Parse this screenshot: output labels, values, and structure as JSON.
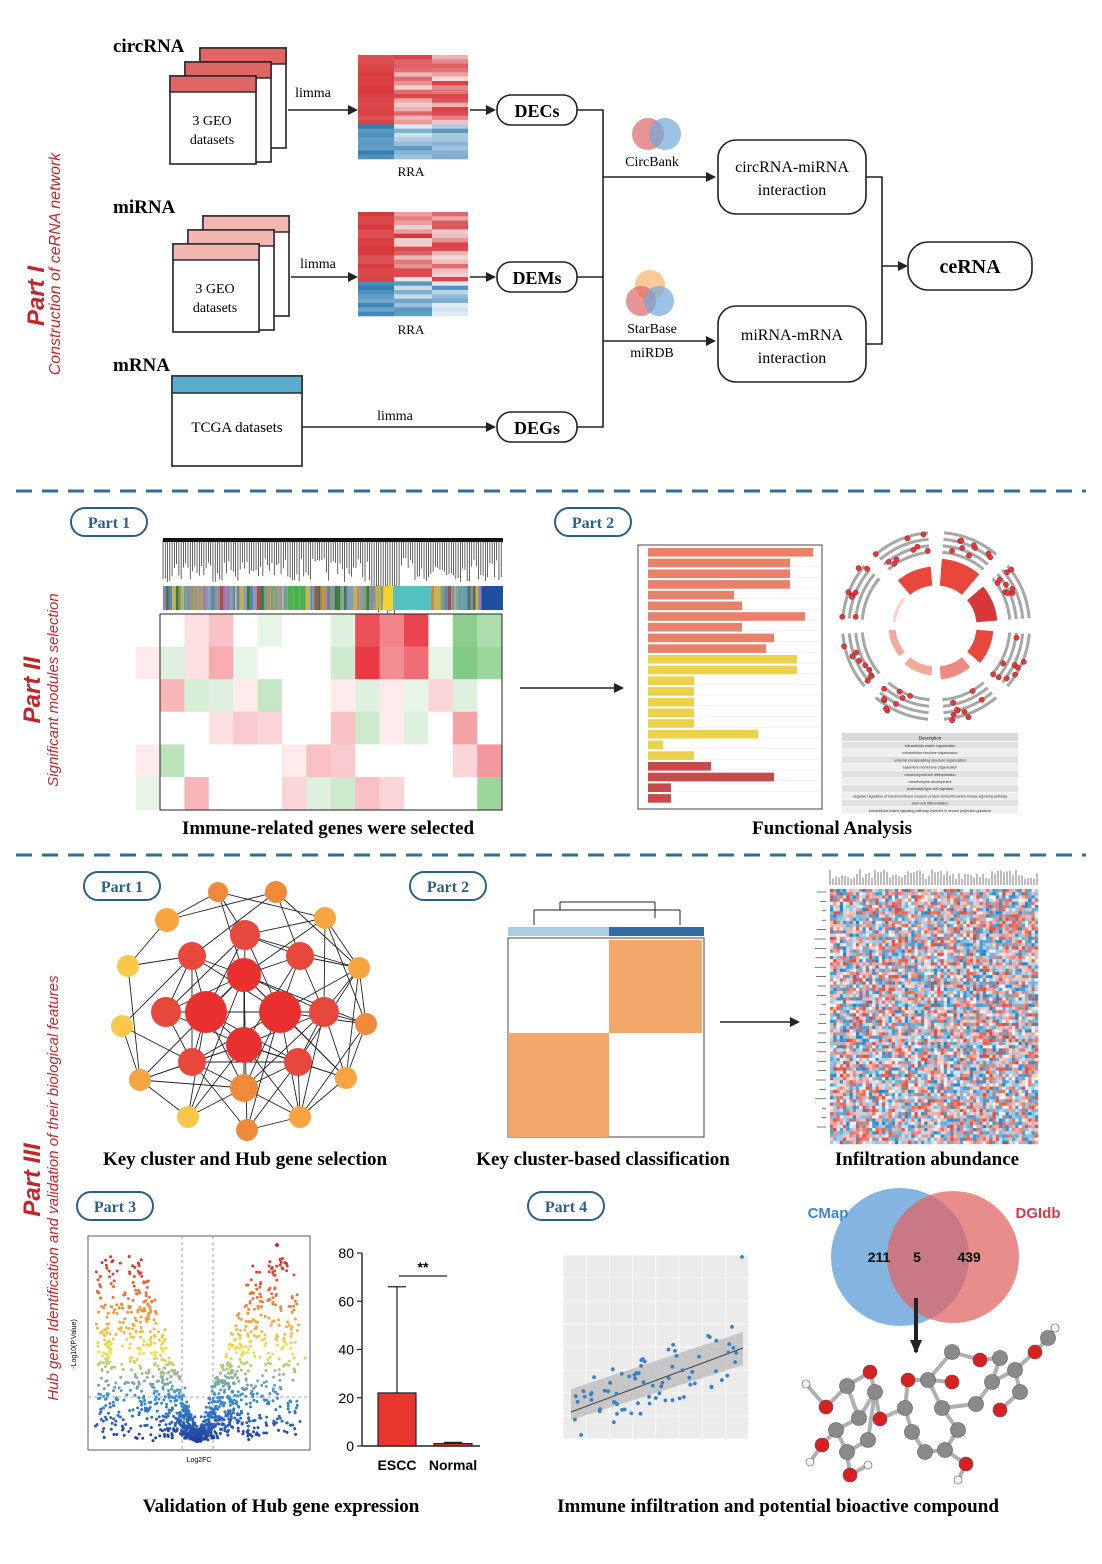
{
  "part1": {
    "side_title": "Part I",
    "side_subtitle": "Construction of ceRNA network",
    "circ": {
      "label": "circRNA",
      "box_line1": "3 GEO",
      "box_line2": "datasets",
      "method": "limma",
      "rra": "RRA",
      "result": "DECs"
    },
    "mirna": {
      "label": "miRNA",
      "box_line1": "3 GEO",
      "box_line2": "datasets",
      "method": "limma",
      "rra": "RRA",
      "result": "DEMs"
    },
    "mrna": {
      "label": "mRNA",
      "box_line1": "TCGA datasets",
      "method": "limma",
      "result": "DEGs"
    },
    "circbank": "CircBank",
    "starbase": "StarBase",
    "mirdb": "miRDB",
    "circ_interaction_line1": "circRNA-miRNA",
    "circ_interaction_line2": "interaction",
    "mi_interaction_line1": "miRNA-mRNA",
    "mi_interaction_line2": "interaction",
    "cerna": "ceRNA",
    "colors": {
      "red": "#e06666",
      "pink": "#f4b6b0",
      "teal": "#5aaccc"
    }
  },
  "part2": {
    "side_title": "Part II",
    "side_subtitle": "Significant modules selection",
    "pill1": "Part 1",
    "pill2": "Part 2",
    "caption_left": "Immune-related genes were selected",
    "caption_right": "Functional Analysis",
    "table_header": "Description",
    "table_rows": [
      "extracellular matrix organization",
      "extracellular structure organization",
      "external encapsulating structure organization",
      "basement membrane organization",
      "mesenchymal cell differentiation",
      "mesenchyme development",
      "ameboidal-type cell migration",
      "negative regulation of transmembrane receptor protein serine/threonine kinase signaling pathway",
      "stem cell differentiation",
      "extracellular-matrix signaling pathway involved in neuron projection guidance"
    ]
  },
  "part3": {
    "side_title": "Part III",
    "side_subtitle": "Hub gene Identification and validation of their biological features",
    "pill1": "Part 1",
    "pill2": "Part 2",
    "pill3": "Part 3",
    "pill4": "Part 4",
    "caption1": "Key cluster and Hub gene selection",
    "caption2": "Key cluster-based classification",
    "caption3": "Infiltration abundance",
    "caption4": "Validation of Hub gene expression",
    "caption5": "Immune infiltration and potential bioactive compound",
    "volcano": {
      "xlabel": "Log2FC",
      "ylabel": "-Log10(P.Value)"
    },
    "venn": {
      "left": "CMap",
      "right": "DGIdb",
      "left_only": "211",
      "both": "5",
      "right_only": "439"
    }
  },
  "chart_data": [
    {
      "type": "bar",
      "categories": [
        "ESCC",
        "Normal"
      ],
      "values": [
        22,
        1
      ],
      "error_upper": [
        66,
        1.5
      ],
      "ylim": [
        0,
        80
      ],
      "yticks": [
        "0",
        "20",
        "40",
        "60",
        "80"
      ],
      "significance": "**",
      "colors": [
        "#e8352e",
        "#e8352e"
      ]
    }
  ]
}
